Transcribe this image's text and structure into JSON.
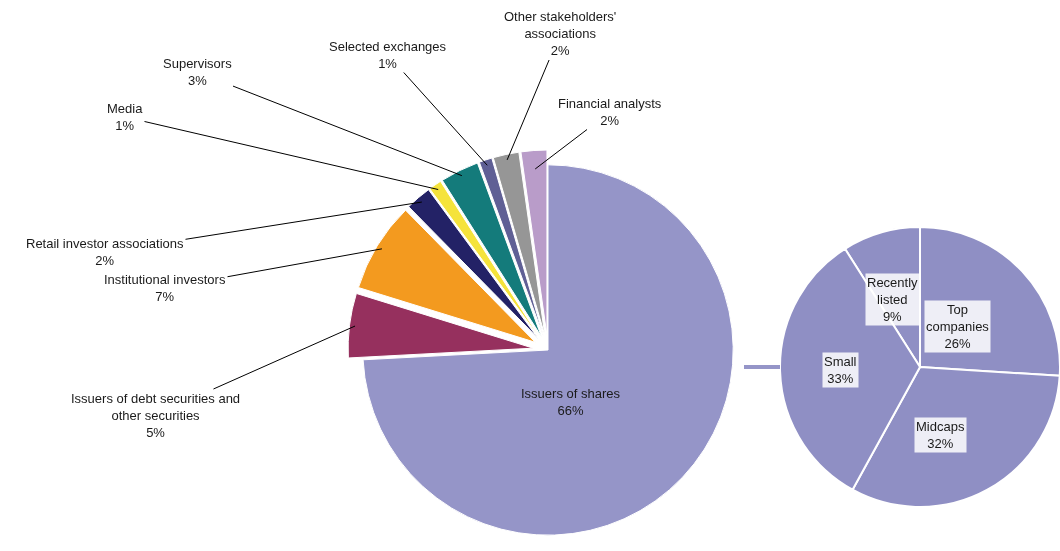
{
  "chart_data": [
    {
      "type": "pie",
      "categories": [
        "Issuers of shares",
        "Issuers of debt securities and other securities",
        "Institutional investors",
        "Retail investor associations",
        "Media",
        "Supervisors",
        "Selected exchanges",
        "Other stakeholders' associations",
        "Financial analysts"
      ],
      "values": [
        66,
        5,
        7,
        2,
        1,
        3,
        1,
        2,
        2
      ],
      "value_labels": [
        "66%",
        "5%",
        "7%",
        "2%",
        "1%",
        "3%",
        "1%",
        "2%",
        "2%"
      ],
      "colors": [
        "#9595c8",
        "#96305e",
        "#f39a1f",
        "#232266",
        "#f5e33b",
        "#147b7b",
        "#5f5f95",
        "#969696",
        "#b99cc9"
      ]
    },
    {
      "type": "pie",
      "categories": [
        "Recently listed",
        "Top companies",
        "Midcaps",
        "Small"
      ],
      "values": [
        9,
        26,
        32,
        33
      ],
      "value_labels": [
        "9%",
        "26%",
        "32%",
        "33%"
      ],
      "colors": [
        "#8f8fc4",
        "#8f8fc4",
        "#8f8fc4",
        "#8f8fc4"
      ]
    }
  ]
}
